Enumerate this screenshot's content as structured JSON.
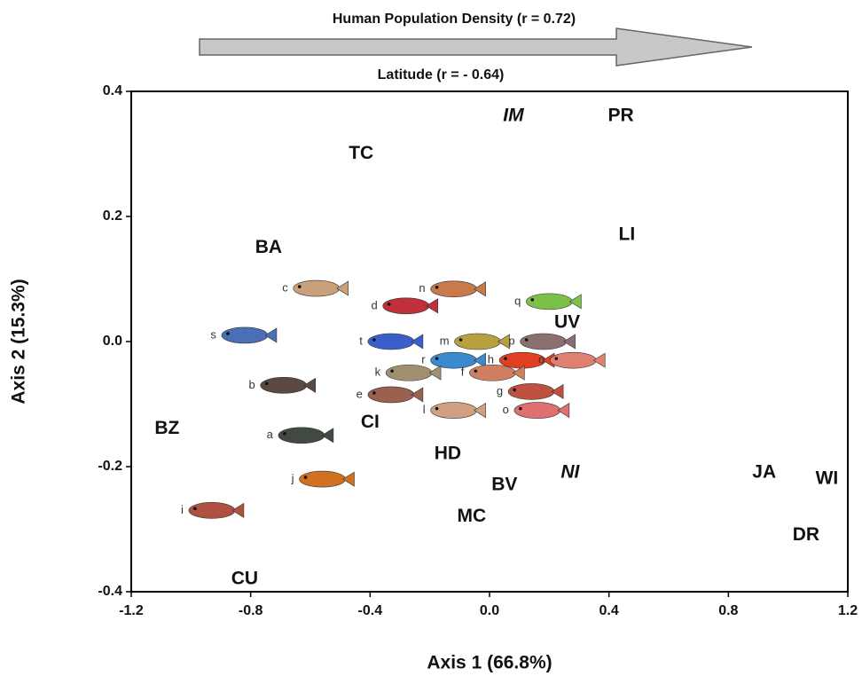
{
  "chart_data": {
    "type": "scatter",
    "annotations": [
      "Human Population Density (r = 0.72)",
      "Latitude (r = - 0.64)"
    ],
    "x_label": "Axis 1 (66.8%)",
    "y_label": "Axis 2 (15.3%)",
    "xlim": [
      -1.2,
      1.2
    ],
    "ylim": [
      -0.4,
      0.4
    ],
    "xticks": [
      -1.2,
      -0.8,
      -0.4,
      {
        "value": 0,
        "label": "0.0"
      },
      0.4,
      0.8,
      1.2
    ],
    "yticks": [
      -0.4,
      -0.2,
      {
        "value": 0,
        "label": "0.0"
      },
      0.2,
      0.4
    ],
    "series": [
      {
        "color": "#111111",
        "labels": [
          "IM",
          "PR",
          "TC",
          "LI",
          "BA",
          "UV",
          "BZ",
          "CI",
          "HD",
          "NI",
          "BV",
          "MC",
          "JA",
          "WI",
          "DR",
          "CU"
        ],
        "italic": [
          "IM",
          "NI"
        ],
        "x": [
          0.08,
          0.44,
          -0.43,
          0.46,
          -0.74,
          0.26,
          -1.08,
          -0.4,
          -0.14,
          0.27,
          0.05,
          -0.06,
          0.92,
          1.13,
          1.06,
          -0.82
        ],
        "values": [
          0.36,
          0.36,
          0.3,
          0.17,
          0.15,
          0.03,
          -0.14,
          -0.13,
          -0.18,
          -0.21,
          -0.23,
          -0.28,
          -0.21,
          -0.22,
          -0.31,
          -0.38
        ]
      },
      {
        "colors": [
          "#4a6fb5",
          "#3b5fc9",
          "#c9a07a",
          "#c0303a",
          "#c97a4a",
          "#7cc04a",
          "#b8a040",
          "#8a7070",
          "#3a8ad0",
          "#e04020",
          "#e08070",
          "#a09070",
          "#d08060",
          "#5a4a40",
          "#c05040",
          "#9a6050",
          "#e07070",
          "#d0a080",
          "#404a40",
          "#d07020",
          "#b05040"
        ],
        "labels": [
          "s",
          "t",
          "c",
          "d",
          "n",
          "q",
          "m",
          "p",
          "r",
          "h",
          "o",
          "k",
          "f",
          "b",
          "g",
          "e",
          "o",
          "l",
          "a",
          "j",
          "i"
        ],
        "x": [
          -0.82,
          -0.33,
          -0.58,
          -0.28,
          -0.12,
          0.2,
          -0.04,
          0.18,
          -0.12,
          0.11,
          0.28,
          -0.27,
          0.01,
          -0.69,
          0.14,
          -0.33,
          0.16,
          -0.12,
          -0.63,
          -0.56,
          -0.93
        ],
        "values": [
          0.01,
          0.0,
          0.085,
          0.057,
          0.084,
          0.064,
          0.0,
          0.0,
          -0.03,
          -0.03,
          -0.03,
          -0.05,
          -0.05,
          -0.07,
          -0.08,
          -0.085,
          -0.11,
          -0.11,
          -0.15,
          -0.22,
          -0.27
        ]
      }
    ]
  }
}
